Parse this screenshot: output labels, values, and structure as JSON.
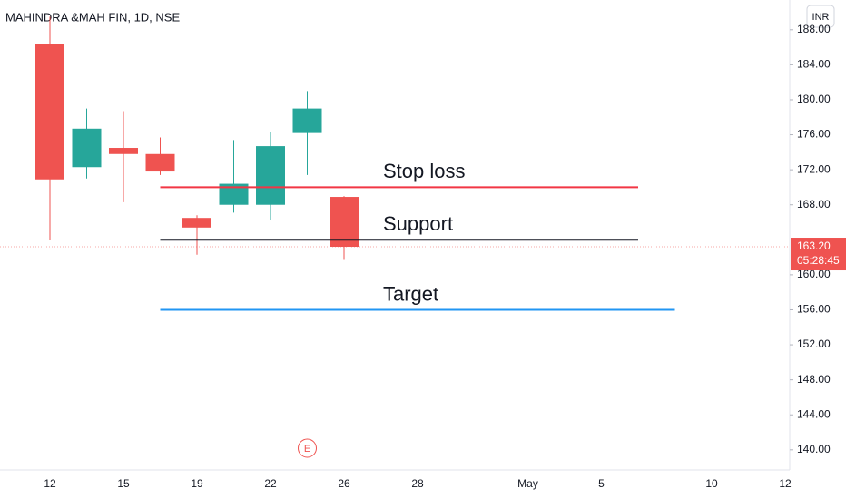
{
  "chart_data": {
    "type": "candlestick",
    "title": "MAHINDRA &MAH FIN, 1D, NSE",
    "currency": "INR",
    "categories": [
      "12",
      null,
      "15",
      null,
      "19",
      null,
      "22",
      null,
      "26",
      null,
      "28",
      null,
      null,
      "May",
      null,
      "5",
      null,
      null,
      "10",
      null,
      "12"
    ],
    "open": [
      186.4,
      172.3,
      174.5,
      173.8,
      166.5,
      168.0,
      168.0,
      176.2,
      168.9,
      null,
      null,
      null,
      null,
      null,
      null,
      null,
      null,
      null,
      null,
      null,
      null
    ],
    "high": [
      189.5,
      179.0,
      178.7,
      175.7,
      166.8,
      175.4,
      176.3,
      181.0,
      169.0,
      null,
      null,
      null,
      null,
      null,
      null,
      null,
      null,
      null,
      null,
      null,
      null
    ],
    "low": [
      164.0,
      171.0,
      168.3,
      171.4,
      162.3,
      167.1,
      166.3,
      171.4,
      161.7,
      null,
      null,
      null,
      null,
      null,
      null,
      null,
      null,
      null,
      null,
      null,
      null
    ],
    "close": [
      170.9,
      176.7,
      173.8,
      171.8,
      165.4,
      170.4,
      174.7,
      179.0,
      163.2,
      null,
      null,
      null,
      null,
      null,
      null,
      null,
      null,
      null,
      null,
      null,
      null
    ],
    "up_color": "#26a69a",
    "down_color": "#ef5350",
    "ylim": [
      137.7,
      191.4
    ],
    "yticks": [
      {
        "value": 188,
        "label": "188.00"
      },
      {
        "value": 184,
        "label": "184.00"
      },
      {
        "value": 180,
        "label": "180.00"
      },
      {
        "value": 176,
        "label": "176.00"
      },
      {
        "value": 172,
        "label": "172.00"
      },
      {
        "value": 168,
        "label": "168.00"
      },
      {
        "value": 160,
        "label": "160.00"
      },
      {
        "value": 156,
        "label": "156.00"
      },
      {
        "value": 152,
        "label": "152.00"
      },
      {
        "value": 148,
        "label": "148.00"
      },
      {
        "value": 144,
        "label": "144.00"
      },
      {
        "value": 140,
        "label": "140.00"
      }
    ],
    "last_price": {
      "value": 163.2,
      "label": "163.20",
      "countdown": "05:28:45",
      "color": "#ef5350"
    },
    "levels": [
      {
        "label": "Stop loss",
        "price": 170,
        "from": 3,
        "to": 16,
        "color": "#f23645"
      },
      {
        "label": "Support",
        "price": 164,
        "from": 3,
        "to": 16,
        "color": "#131722"
      },
      {
        "label": "Target",
        "price": 156,
        "from": 3,
        "to": 17,
        "color": "#2196f3"
      }
    ],
    "event": {
      "label": "E",
      "at": 7
    }
  }
}
